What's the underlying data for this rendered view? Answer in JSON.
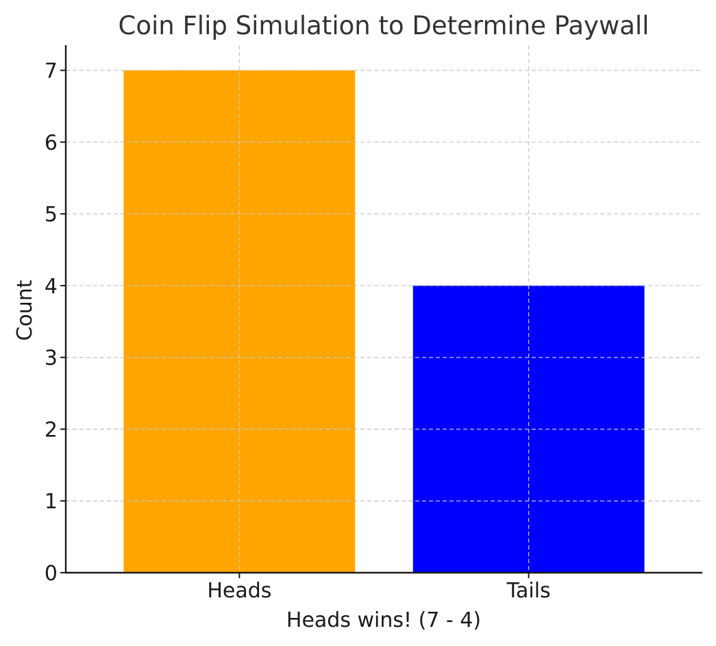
{
  "chart_data": {
    "type": "bar",
    "title": "Coin Flip Simulation to Determine Paywall",
    "xlabel": "Heads wins! (7 - 4)",
    "ylabel": "Count",
    "categories": [
      "Heads",
      "Tails"
    ],
    "values": [
      7,
      4
    ],
    "colors": [
      "#FFA500",
      "#0000FF"
    ],
    "ylim": [
      0,
      7.35
    ],
    "yticks": [
      0,
      1,
      2,
      3,
      4,
      5,
      6,
      7
    ],
    "grid": true,
    "legend": "none"
  }
}
